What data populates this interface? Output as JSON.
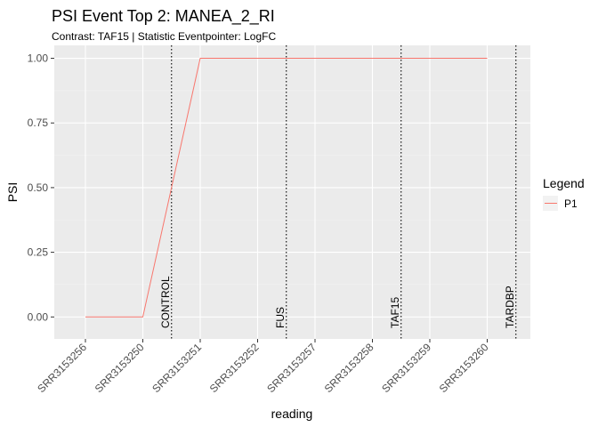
{
  "chart_data": {
    "type": "line",
    "title": "PSI Event Top 2: MANEA_2_RI",
    "subtitle": "Contrast: TAF15 | Statistic Eventpointer: LogFC",
    "xlabel": "reading",
    "ylabel": "PSI",
    "categories": [
      "SRR3153256",
      "SRR3153250",
      "SRR3153251",
      "SRR3153252",
      "SRR3153257",
      "SRR3153258",
      "SRR3153259",
      "SRR3153260"
    ],
    "ylim": [
      -0.085,
      1.05
    ],
    "yticks": [
      "0.00",
      "0.25",
      "0.50",
      "0.75",
      "1.00"
    ],
    "series": [
      {
        "name": "P1",
        "values": [
          0,
          0,
          1,
          1,
          1,
          1,
          1,
          1
        ],
        "color": "#f8766d"
      }
    ],
    "vlines": [
      {
        "label": "CONTROL",
        "x": 2.5
      },
      {
        "label": "FUS",
        "x": 4.5
      },
      {
        "label": "TAF15",
        "x": 6.5
      },
      {
        "label": "TARDBP",
        "x": 8.5
      }
    ],
    "legend": {
      "title": "Legend",
      "position": "right"
    },
    "grid": true,
    "panel_background": "#ebebeb"
  }
}
